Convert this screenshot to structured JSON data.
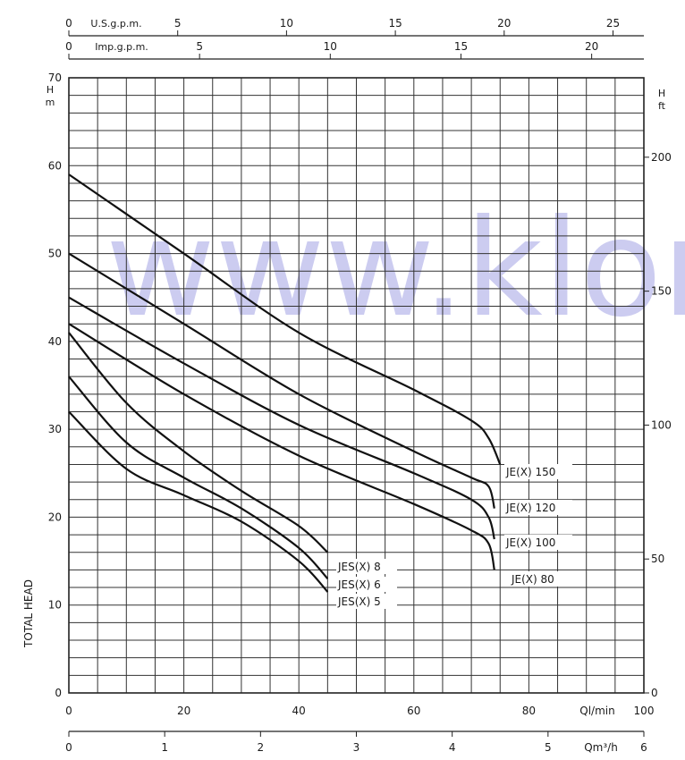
{
  "chart_data": {
    "type": "line",
    "x": {
      "label": "Ql/min",
      "range": [
        0,
        100
      ],
      "ticks": [
        "0",
        "20",
        "40",
        "60",
        "80",
        "100"
      ]
    },
    "y": {
      "label": "TOTAL HEAD",
      "unit_label": [
        "H",
        "m"
      ],
      "range": [
        0,
        70
      ],
      "ticks": [
        "0",
        "10",
        "20",
        "30",
        "40",
        "50",
        "60",
        "70"
      ]
    },
    "y_right": {
      "unit_label": [
        "H",
        "ft"
      ],
      "ticks": [
        "0",
        "50",
        "100",
        "150",
        "200"
      ]
    },
    "x_top_us": {
      "label": "U.S.g.p.m.",
      "ticks": [
        "0",
        "5",
        "10",
        "15",
        "20",
        "25"
      ]
    },
    "x_top_imp": {
      "label": "Imp.g.p.m.",
      "ticks": [
        "0",
        "5",
        "10",
        "15",
        "20"
      ]
    },
    "x_bottom_m3h": {
      "label": "Qm³/h",
      "ticks": [
        "0",
        "1",
        "2",
        "3",
        "4",
        "5",
        "6"
      ]
    },
    "grid": true,
    "series": [
      {
        "name": "JE(X) 150",
        "x": [
          0,
          20,
          40,
          60,
          70,
          73,
          75
        ],
        "y": [
          59,
          50,
          41,
          34.5,
          31,
          29,
          26
        ]
      },
      {
        "name": "JE(X) 120",
        "x": [
          0,
          20,
          40,
          60,
          70,
          73,
          74
        ],
        "y": [
          50,
          42,
          34,
          27.5,
          24.5,
          23.5,
          21
        ]
      },
      {
        "name": "JE(X) 100",
        "x": [
          0,
          20,
          40,
          60,
          70,
          73,
          74
        ],
        "y": [
          45,
          37.5,
          30.5,
          25,
          22,
          20,
          17.5
        ]
      },
      {
        "name": "JE(X) 80",
        "x": [
          0,
          20,
          40,
          60,
          70,
          73,
          74
        ],
        "y": [
          42,
          34,
          27,
          21.5,
          18.5,
          17,
          14
        ]
      },
      {
        "name": "JES(X) 8",
        "x": [
          0,
          10,
          20,
          30,
          40,
          45
        ],
        "y": [
          41,
          33,
          27.5,
          23,
          19,
          16
        ]
      },
      {
        "name": "JES(X) 6",
        "x": [
          0,
          10,
          20,
          30,
          40,
          45
        ],
        "y": [
          36,
          28.5,
          24.5,
          21,
          16.5,
          13
        ]
      },
      {
        "name": "JES(X) 5",
        "x": [
          0,
          10,
          20,
          30,
          40,
          45
        ],
        "y": [
          32,
          25.5,
          22.5,
          19.5,
          15,
          11.5
        ]
      }
    ]
  },
  "watermark": "www.klong",
  "colors": {
    "ink": "#111111",
    "watermark": "#8f8fe0"
  }
}
